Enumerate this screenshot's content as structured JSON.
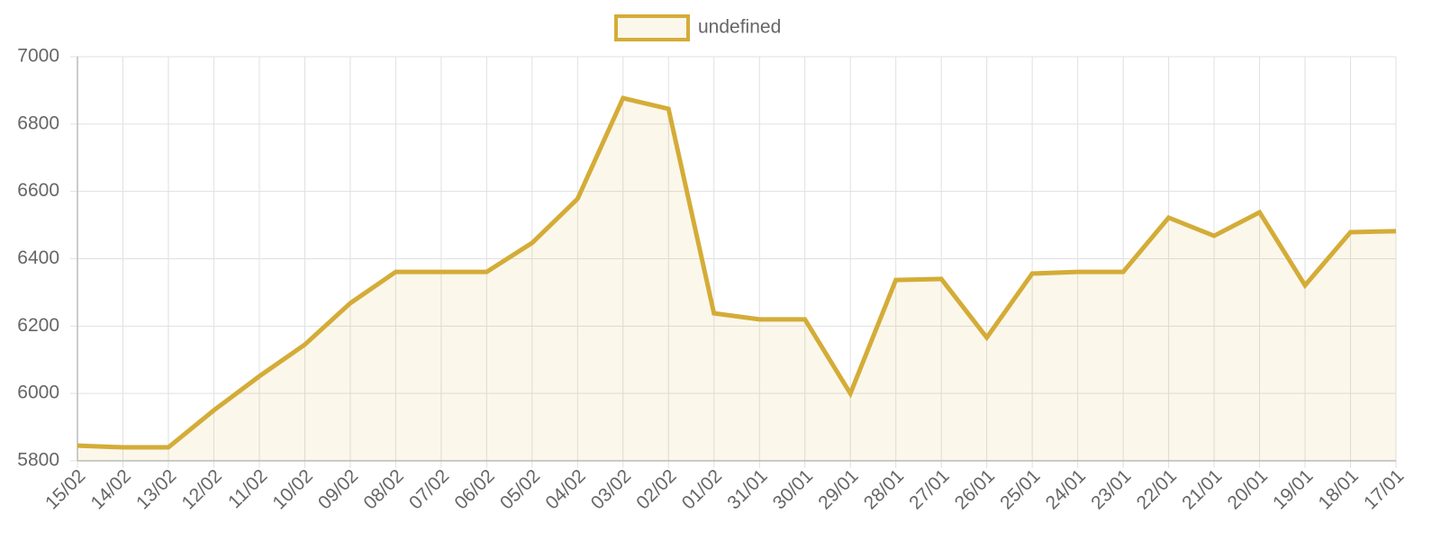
{
  "chart_data": {
    "type": "area",
    "legend": "undefined",
    "color": "#d4ac37",
    "fill": "rgba(212,172,55,0.1)",
    "grid": true,
    "categories": [
      "15/02",
      "14/02",
      "13/02",
      "12/02",
      "11/02",
      "10/02",
      "09/02",
      "08/02",
      "07/02",
      "06/02",
      "05/02",
      "04/02",
      "03/02",
      "02/02",
      "01/02",
      "31/01",
      "30/01",
      "29/01",
      "28/01",
      "27/01",
      "26/01",
      "25/01",
      "24/01",
      "23/01",
      "22/01",
      "21/01",
      "20/01",
      "19/01",
      "18/01",
      "17/01"
    ],
    "values": [
      5845,
      5840,
      5840,
      5950,
      6051,
      6145,
      6268,
      6361,
      6361,
      6361,
      6447,
      6578,
      6877,
      6845,
      6238,
      6220,
      6220,
      6000,
      6337,
      6340,
      6166,
      6356,
      6361,
      6361,
      6522,
      6468,
      6538,
      6321,
      6479,
      6482
    ],
    "ylim": [
      5800,
      7000
    ],
    "yticks": [
      5800,
      6000,
      6200,
      6400,
      6600,
      6800,
      7000
    ]
  }
}
